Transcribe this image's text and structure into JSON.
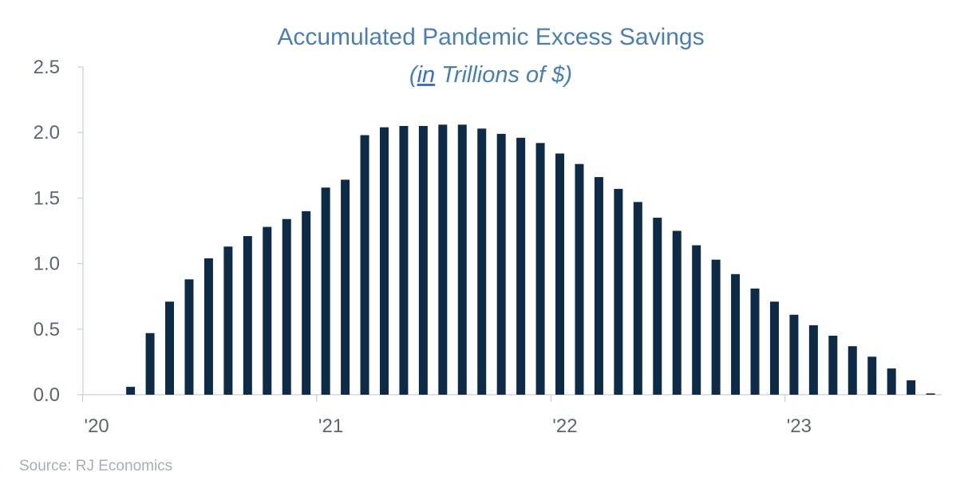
{
  "chart_data": {
    "type": "bar",
    "title": "Accumulated Pandemic Excess Savings",
    "subtitle_prefix": "(",
    "subtitle_underlined": "in",
    "subtitle_rest": " Trillions of $)",
    "xlabel": "",
    "ylabel": "",
    "ylim": [
      0,
      2.5
    ],
    "y_ticks": [
      "0.0",
      "0.5",
      "1.0",
      "1.5",
      "2.0",
      "2.5"
    ],
    "x_ticks": [
      "'20",
      "'21",
      "'22",
      "'23"
    ],
    "grid": false,
    "bar_color": "#0d2a47",
    "x_start": "2020-01",
    "categories": [
      "2020-01",
      "2020-02",
      "2020-03",
      "2020-04",
      "2020-05",
      "2020-06",
      "2020-07",
      "2020-08",
      "2020-09",
      "2020-10",
      "2020-11",
      "2020-12",
      "2021-01",
      "2021-02",
      "2021-03",
      "2021-04",
      "2021-05",
      "2021-06",
      "2021-07",
      "2021-08",
      "2021-09",
      "2021-10",
      "2021-11",
      "2021-12",
      "2022-01",
      "2022-02",
      "2022-03",
      "2022-04",
      "2022-05",
      "2022-06",
      "2022-07",
      "2022-08",
      "2022-09",
      "2022-10",
      "2022-11",
      "2022-12",
      "2023-01",
      "2023-02",
      "2023-03",
      "2023-04",
      "2023-05",
      "2023-06",
      "2023-07",
      "2023-08"
    ],
    "values": [
      0,
      0,
      0.06,
      0.47,
      0.71,
      0.88,
      1.04,
      1.13,
      1.21,
      1.28,
      1.34,
      1.4,
      1.58,
      1.64,
      1.98,
      2.04,
      2.05,
      2.05,
      2.06,
      2.06,
      2.03,
      1.99,
      1.96,
      1.92,
      1.84,
      1.76,
      1.66,
      1.57,
      1.47,
      1.35,
      1.25,
      1.14,
      1.03,
      0.92,
      0.81,
      0.71,
      0.61,
      0.53,
      0.45,
      0.37,
      0.29,
      0.2,
      0.11,
      0.01
    ]
  },
  "source": "Source: RJ Economics"
}
